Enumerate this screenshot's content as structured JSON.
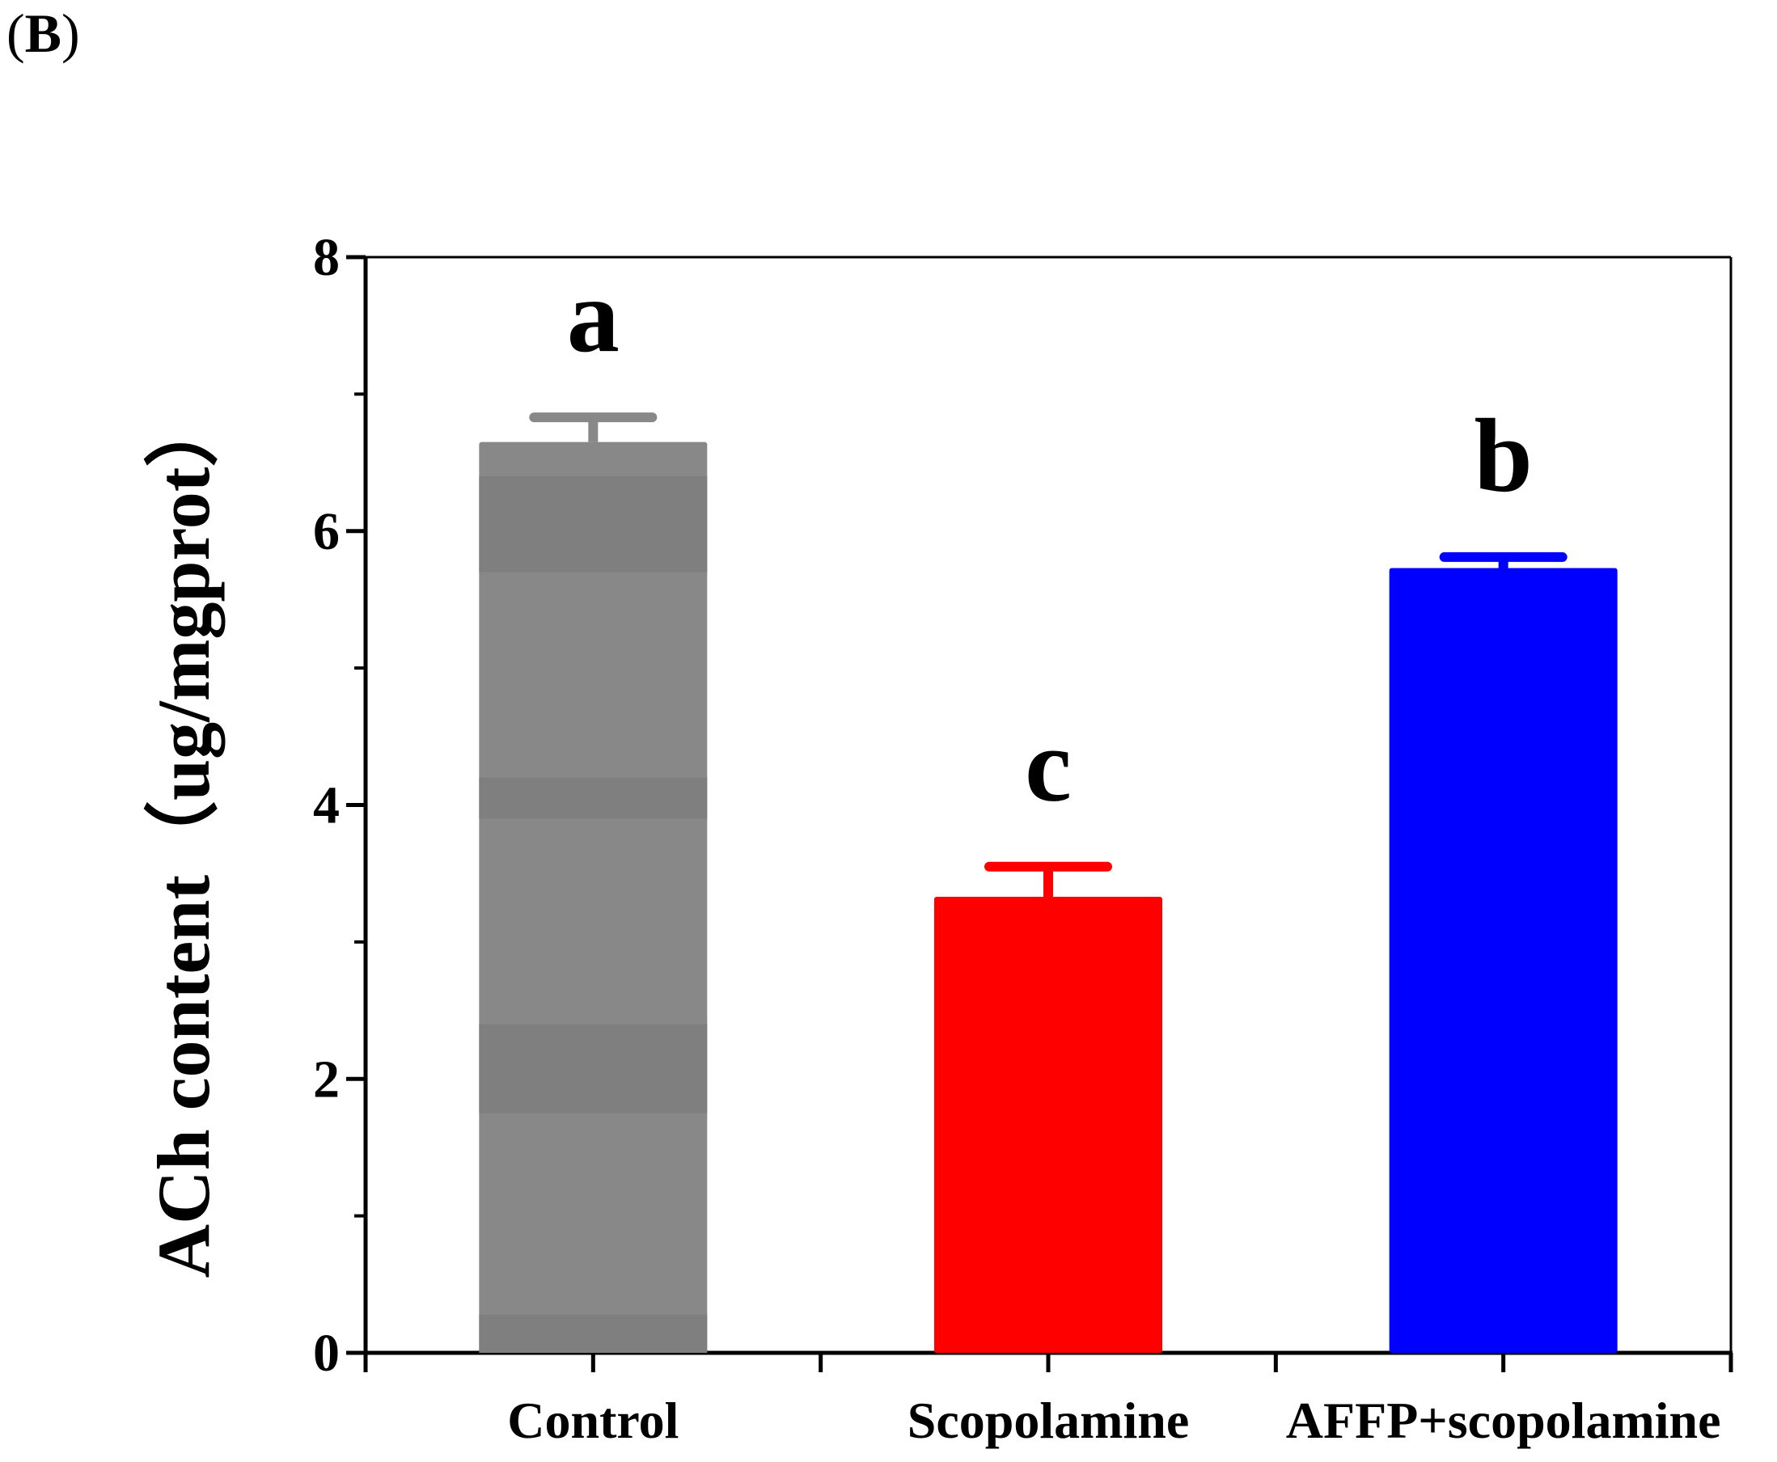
{
  "panel": {
    "open": "(",
    "letter": "B",
    "close": ")"
  },
  "colors": {
    "axis": "#000000",
    "control": "#888888",
    "control_band": "#7f7f7f",
    "scopolamine": "#ff0000",
    "affp": "#0000ff"
  },
  "chart_data": {
    "type": "bar",
    "title": "",
    "xlabel": "",
    "ylabel": "ACh  content（ug/mgprot）",
    "ylim": [
      0,
      8
    ],
    "yticks": [
      0,
      2,
      4,
      6,
      8
    ],
    "yticks_minor": [
      1,
      3,
      5,
      7
    ],
    "categories": [
      "Control",
      "Scopolamine",
      "AFFP+scopolamine"
    ],
    "values": [
      6.65,
      3.33,
      5.73
    ],
    "errors": [
      0.18,
      0.22,
      0.08
    ],
    "significance": [
      "a",
      "c",
      "b"
    ],
    "colors": [
      "#888888",
      "#ff0000",
      "#0000ff"
    ],
    "grid": false,
    "legend": "none"
  }
}
